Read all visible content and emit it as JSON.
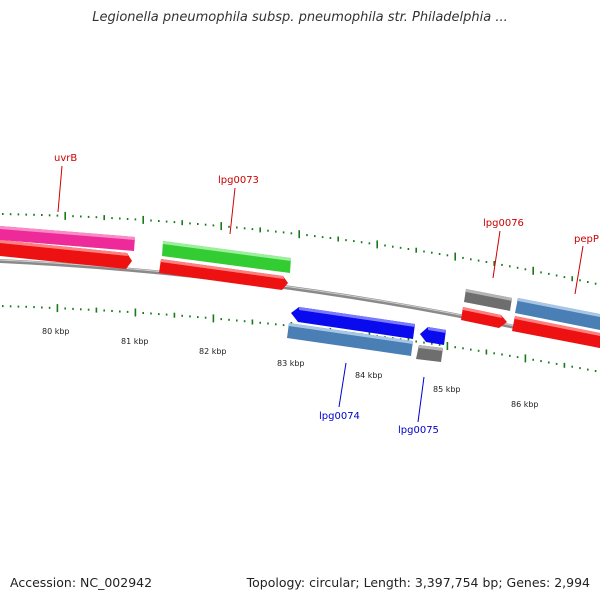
{
  "title": "Legionella pneumophila subsp. pneumophila str. Philadelphia ...",
  "footer": {
    "accession": "Accession: NC_002942",
    "summary": "Topology: circular; Length: 3,397,754 bp; Genes: 2,994"
  },
  "colors": {
    "forward_label": "#cc0000",
    "reverse_label": "#0000cc",
    "tick": "#1a7a1a",
    "backbone": "#8a8a8a",
    "cds_red": "#ee1111",
    "magenta": "#ee2a9a",
    "green": "#33cc33",
    "steelblue": "#4a7fb5",
    "blue": "#0a0aee",
    "gray": "#6e6e6e"
  },
  "scale_labels": [
    "80 kbp",
    "81 kbp",
    "82 kbp",
    "83 kbp",
    "84 kbp",
    "85 kbp",
    "86 kbp"
  ],
  "gene_labels": {
    "uvrB": "uvrB",
    "lpg0073": "lpg0073",
    "lpg0076": "lpg0076",
    "pepP": "pepP",
    "lpg0074": "lpg0074",
    "lpg0075": "lpg0075"
  }
}
